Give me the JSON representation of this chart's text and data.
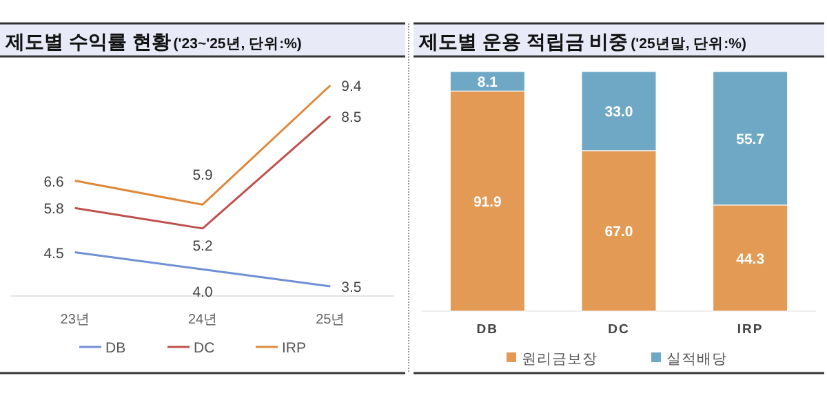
{
  "chart_data": [
    {
      "type": "line",
      "title": "제도별 수익률 현황",
      "subtitle": "('23~'25년, 단위:%)",
      "categories": [
        "23년",
        "24년",
        "25년"
      ],
      "data_labels": true,
      "legend": "bottom",
      "marker": "none",
      "series": [
        {
          "name": "DB",
          "color": "#6f8fd6",
          "values": [
            4.5,
            4.0,
            3.5
          ],
          "value_labels": [
            "4.5",
            "4.0",
            "3.5"
          ]
        },
        {
          "name": "DC",
          "color": "#c0504d",
          "values": [
            5.8,
            5.2,
            8.5
          ]
        },
        {
          "name": "IRP",
          "color": "#e0883a",
          "values": [
            6.6,
            5.9,
            9.4
          ]
        }
      ]
    },
    {
      "type": "bar",
      "title": "제도별 운용 적립금 비중",
      "subtitle": "('25년말, 단위:%)",
      "categories": [
        "DB",
        "DC",
        "IRP"
      ],
      "stacked": true,
      "data_labels": true,
      "legend": "bottom",
      "series": [
        {
          "name": "원리금보장",
          "color": "#e39a55",
          "values": [
            91.9,
            67.0,
            44.3
          ],
          "value_labels": [
            "91.9",
            "67.0",
            "44.3"
          ]
        },
        {
          "name": "실적배당",
          "color": "#6ea8c5",
          "values": [
            8.1,
            33.0,
            55.7
          ],
          "value_labels": [
            "8.1",
            "33.0",
            "55.7"
          ]
        }
      ]
    }
  ]
}
